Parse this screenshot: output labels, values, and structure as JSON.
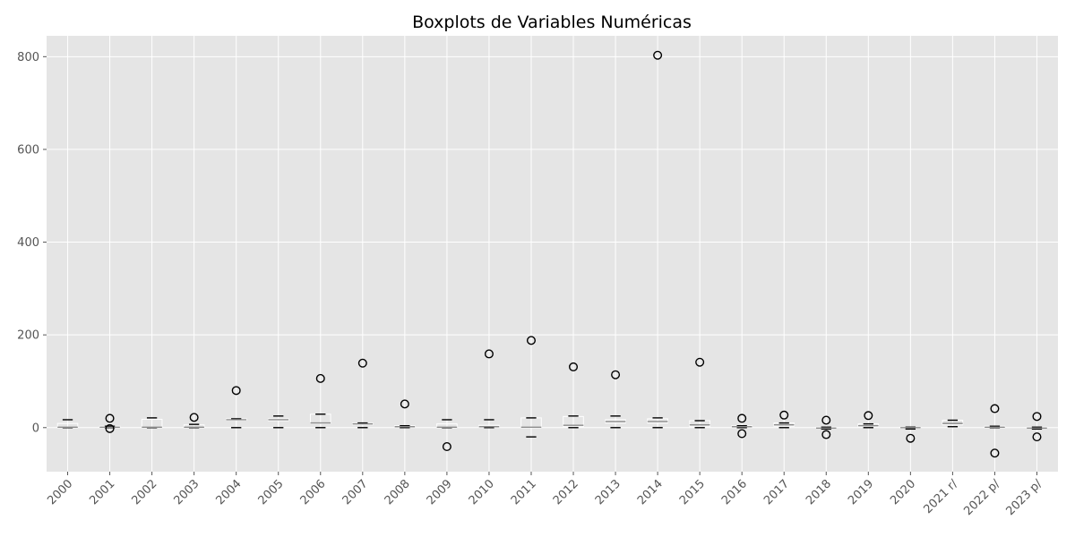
{
  "chart_data": {
    "type": "boxplot",
    "title": "Boxplots de Variables Numéricas",
    "xlabel": "",
    "ylabel": "",
    "ylim": [
      -95,
      845
    ],
    "yticks": [
      0,
      200,
      400,
      600,
      800
    ],
    "grid": true,
    "categories": [
      "2000",
      "2001",
      "2002",
      "2003",
      "2004",
      "2005",
      "2006",
      "2007",
      "2008",
      "2009",
      "2010",
      "2011",
      "2012",
      "2013",
      "2014",
      "2015",
      "2016",
      "2017",
      "2018",
      "2019",
      "2020",
      "2021 r/",
      "2022 p/",
      "2023 p/"
    ],
    "boxes": [
      {
        "whislo": 0,
        "q1": 0,
        "med": 1,
        "q3": 9,
        "whishi": 17,
        "fliers": []
      },
      {
        "whislo": 0,
        "q1": 0,
        "med": 1,
        "q3": 3,
        "whishi": 3,
        "fliers": [
          20,
          -2
        ]
      },
      {
        "whislo": 0,
        "q1": 0,
        "med": 1,
        "q3": 18,
        "whishi": 21,
        "fliers": []
      },
      {
        "whislo": 0,
        "q1": 0,
        "med": 1,
        "q3": 6,
        "whishi": 7,
        "fliers": [
          22
        ]
      },
      {
        "whislo": 0,
        "q1": 16,
        "med": 17,
        "q3": 19,
        "whishi": 19,
        "fliers": [
          80
        ]
      },
      {
        "whislo": 0,
        "q1": 15,
        "med": 17,
        "q3": 19,
        "whishi": 25,
        "fliers": []
      },
      {
        "whislo": 0,
        "q1": 9,
        "med": 10,
        "q3": 29,
        "whishi": 29,
        "fliers": [
          106
        ]
      },
      {
        "whislo": 0,
        "q1": 6,
        "med": 8,
        "q3": 10,
        "whishi": 10,
        "fliers": [
          139
        ]
      },
      {
        "whislo": 0,
        "q1": 1,
        "med": 2,
        "q3": 4,
        "whishi": 4,
        "fliers": [
          51
        ]
      },
      {
        "whislo": 0,
        "q1": 0,
        "med": 1,
        "q3": 8,
        "whishi": 17,
        "fliers": [
          -41
        ]
      },
      {
        "whislo": 0,
        "q1": 1,
        "med": 2,
        "q3": 5,
        "whishi": 17,
        "fliers": [
          159
        ]
      },
      {
        "whislo": -20,
        "q1": 0,
        "med": 1,
        "q3": 21,
        "whishi": 21,
        "fliers": [
          188
        ]
      },
      {
        "whislo": 0,
        "q1": 2,
        "med": 5,
        "q3": 24,
        "whishi": 25,
        "fliers": [
          131
        ]
      },
      {
        "whislo": 0,
        "q1": 10,
        "med": 13,
        "q3": 17,
        "whishi": 25,
        "fliers": [
          114
        ]
      },
      {
        "whislo": 0,
        "q1": 10,
        "med": 13,
        "q3": 19,
        "whishi": 21,
        "fliers": [
          803
        ]
      },
      {
        "whislo": 0,
        "q1": 2,
        "med": 6,
        "q3": 15,
        "whishi": 15,
        "fliers": [
          141
        ]
      },
      {
        "whislo": 0,
        "q1": 0,
        "med": 2,
        "q3": 4,
        "whishi": 4,
        "fliers": [
          20,
          -13
        ]
      },
      {
        "whislo": 0,
        "q1": 3,
        "med": 6,
        "q3": 10,
        "whishi": 10,
        "fliers": [
          27
        ]
      },
      {
        "whislo": -3,
        "q1": -1,
        "med": -1,
        "q3": 1,
        "whishi": 1,
        "fliers": [
          16,
          -15
        ]
      },
      {
        "whislo": 0,
        "q1": 2,
        "med": 4,
        "q3": 8,
        "whishi": 8,
        "fliers": [
          26
        ]
      },
      {
        "whislo": -3,
        "q1": -1,
        "med": 0,
        "q3": 1,
        "whishi": 1,
        "fliers": [
          -23
        ]
      },
      {
        "whislo": 2,
        "q1": 6,
        "med": 9,
        "q3": 16,
        "whishi": 16,
        "fliers": []
      },
      {
        "whislo": 0,
        "q1": 0,
        "med": 1,
        "q3": 3,
        "whishi": 3,
        "fliers": [
          41,
          -55
        ]
      },
      {
        "whislo": -3,
        "q1": -1,
        "med": -1,
        "q3": 1,
        "whishi": 1,
        "fliers": [
          24,
          -20
        ]
      }
    ],
    "colors": {
      "plot_background": "#e5e5e5",
      "grid": "#ffffff",
      "median": "#8c8c8c",
      "caps": "#000000",
      "fliers": "#000000"
    }
  }
}
